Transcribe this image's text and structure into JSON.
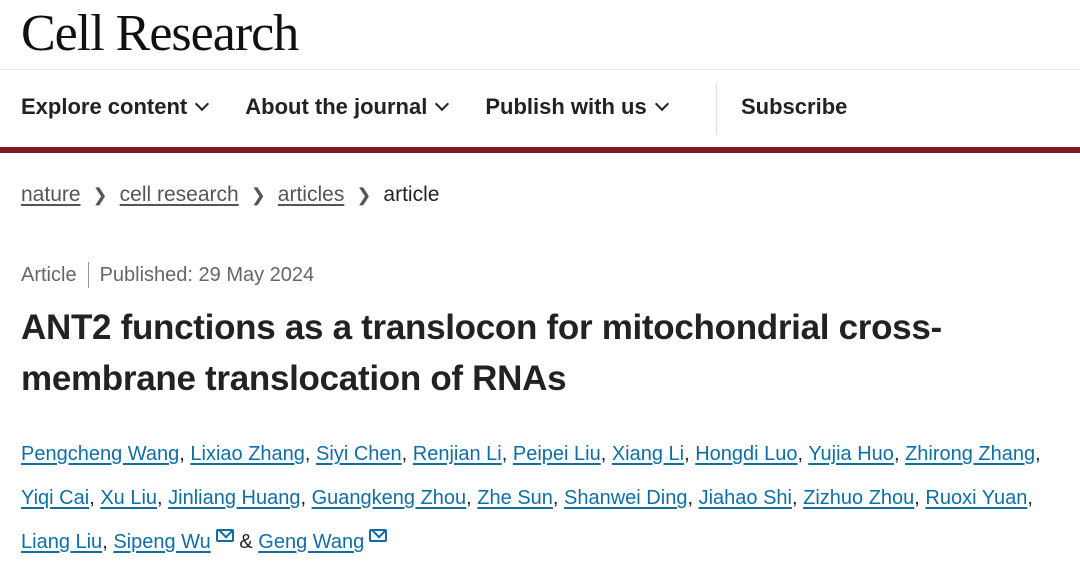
{
  "header": {
    "logo": "Cell Research"
  },
  "nav": {
    "items": [
      "Explore content",
      "About the journal",
      "Publish with us"
    ],
    "subscribe": "Subscribe"
  },
  "breadcrumb": [
    "nature",
    "cell research",
    "articles",
    "article"
  ],
  "meta": {
    "type": "Article",
    "published": "Published: 29 May 2024"
  },
  "title": "ANT2 functions as a translocon for mitochondrial cross-membrane translocation of RNAs",
  "authors": [
    "Pengcheng Wang",
    "Lixiao Zhang",
    "Siyi Chen",
    "Renjian Li",
    "Peipei Liu",
    "Xiang Li",
    "Hongdi Luo",
    "Yujia Huo",
    "Zhirong Zhang",
    "Yiqi Cai",
    "Xu Liu",
    "Jinliang Huang",
    "Guangkeng Zhou",
    "Zhe Sun",
    "Shanwei Ding",
    "Jiahao Shi",
    "Zizhuo Zhou",
    "Ruoxi Yuan",
    "Liang Liu",
    "Sipeng Wu",
    "Geng Wang"
  ],
  "authors_conjunction": "&",
  "colors": {
    "accent_bar": "#7d1a1e",
    "link": "#0f6ea6"
  }
}
